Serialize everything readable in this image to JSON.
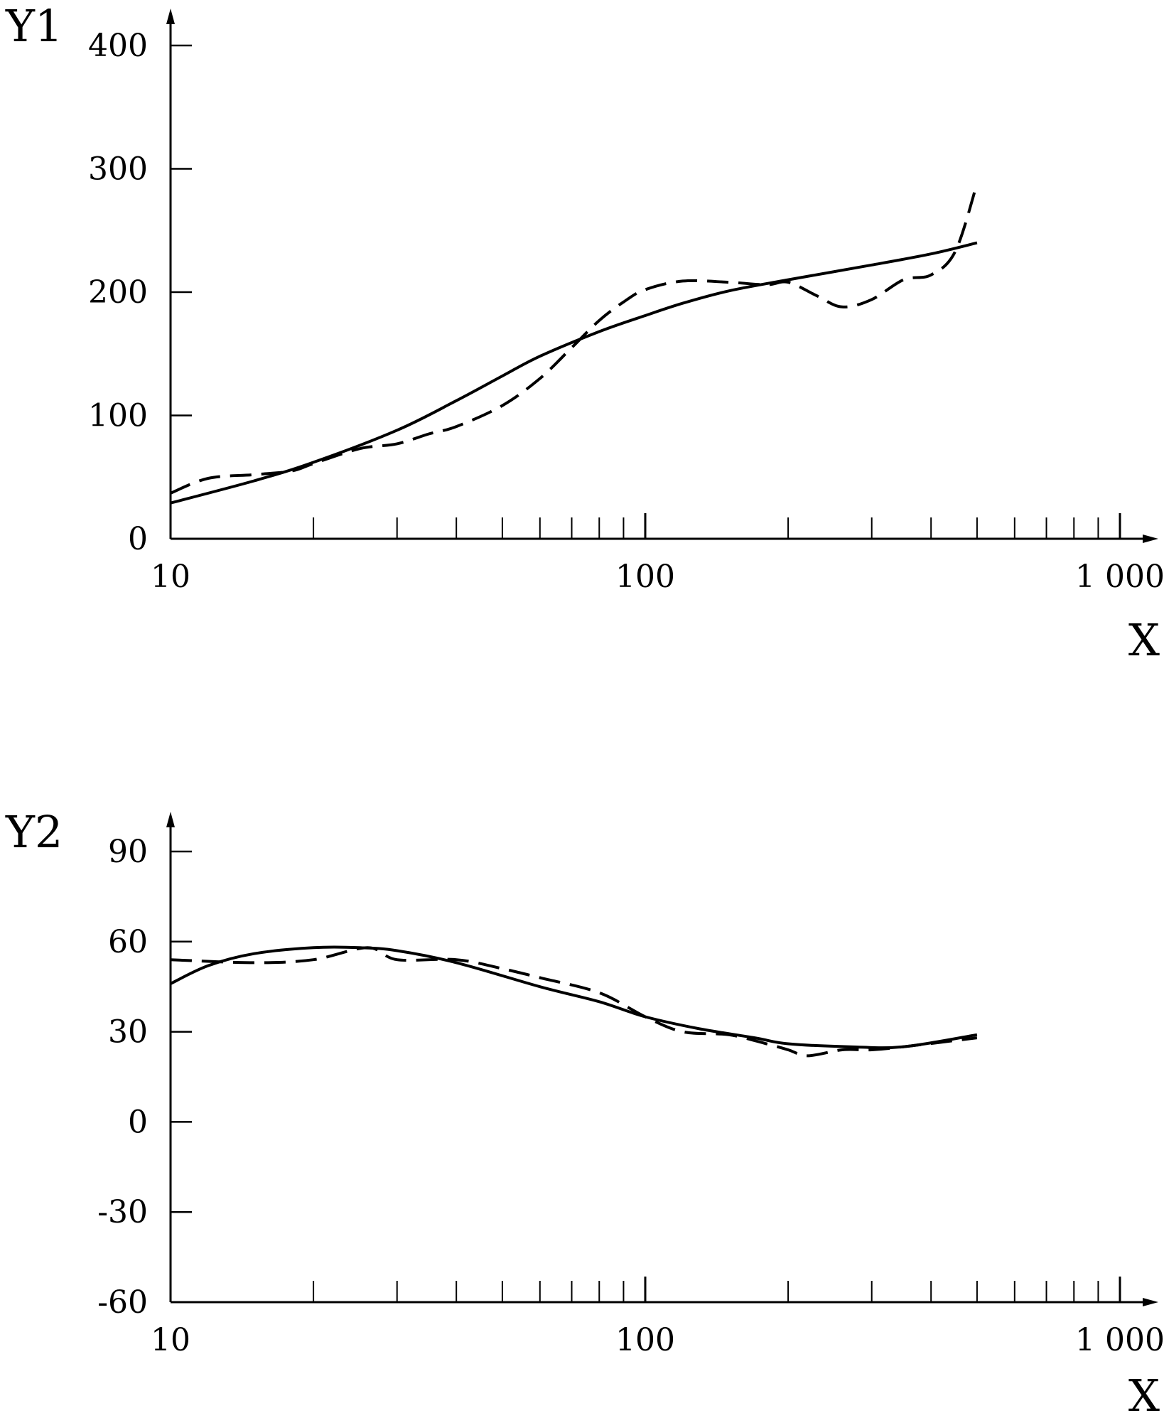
{
  "chart_data": [
    {
      "type": "line",
      "ylabel": "Y1",
      "xlabel": "X",
      "xscale": "log",
      "xlim": [
        10,
        1000
      ],
      "ylim": [
        0,
        400
      ],
      "xticks": [
        10,
        100,
        1000
      ],
      "xtick_labels": [
        "10",
        "100",
        "1 000"
      ],
      "yticks": [
        0,
        100,
        200,
        300,
        400
      ],
      "ytick_labels": [
        "0",
        "100",
        "200",
        "300",
        "400"
      ],
      "grid": false,
      "series": [
        {
          "style": "solid",
          "color": "#000000",
          "points": [
            [
              10,
              29
            ],
            [
              15,
              47
            ],
            [
              20,
              62
            ],
            [
              30,
              88
            ],
            [
              40,
              112
            ],
            [
              50,
              132
            ],
            [
              60,
              148
            ],
            [
              80,
              168
            ],
            [
              100,
              181
            ],
            [
              120,
              191
            ],
            [
              150,
              201
            ],
            [
              200,
              210
            ],
            [
              300,
              222
            ],
            [
              400,
              231
            ],
            [
              500,
              240
            ]
          ]
        },
        {
          "style": "dashed",
          "color": "#000000",
          "points": [
            [
              10,
              37
            ],
            [
              12,
              49
            ],
            [
              15,
              52
            ],
            [
              18,
              55
            ],
            [
              20,
              61
            ],
            [
              25,
              73
            ],
            [
              30,
              77
            ],
            [
              35,
              85
            ],
            [
              40,
              91
            ],
            [
              50,
              108
            ],
            [
              60,
              130
            ],
            [
              70,
              155
            ],
            [
              80,
              177
            ],
            [
              90,
              192
            ],
            [
              100,
              202
            ],
            [
              120,
              209
            ],
            [
              150,
              208
            ],
            [
              180,
              206
            ],
            [
              200,
              208
            ],
            [
              230,
              197
            ],
            [
              260,
              188
            ],
            [
              300,
              194
            ],
            [
              350,
              210
            ],
            [
              400,
              214
            ],
            [
              450,
              233
            ],
            [
              500,
              288
            ]
          ]
        }
      ]
    },
    {
      "type": "line",
      "ylabel": "Y2",
      "xlabel": "X",
      "xscale": "log",
      "xlim": [
        10,
        1000
      ],
      "ylim": [
        -60,
        90
      ],
      "xticks": [
        10,
        100,
        1000
      ],
      "xtick_labels": [
        "10",
        "100",
        "1 000"
      ],
      "yticks": [
        -60,
        -30,
        0,
        30,
        60,
        90
      ],
      "ytick_labels": [
        "-60",
        "-30",
        "0",
        "30",
        "60",
        "90"
      ],
      "grid": false,
      "series": [
        {
          "style": "solid",
          "color": "#000000",
          "points": [
            [
              10,
              46
            ],
            [
              12,
              52
            ],
            [
              15,
              56
            ],
            [
              20,
              58
            ],
            [
              25,
              58
            ],
            [
              30,
              57
            ],
            [
              40,
              53
            ],
            [
              60,
              45
            ],
            [
              80,
              40
            ],
            [
              100,
              35
            ],
            [
              130,
              31
            ],
            [
              170,
              28
            ],
            [
              200,
              26
            ],
            [
              270,
              25
            ],
            [
              350,
              25
            ],
            [
              500,
              29
            ]
          ]
        },
        {
          "style": "dashed",
          "color": "#000000",
          "points": [
            [
              10,
              54
            ],
            [
              15,
              53
            ],
            [
              20,
              54
            ],
            [
              26,
              58
            ],
            [
              30,
              54
            ],
            [
              40,
              54
            ],
            [
              50,
              51
            ],
            [
              60,
              48
            ],
            [
              80,
              43
            ],
            [
              100,
              35
            ],
            [
              120,
              30
            ],
            [
              150,
              29
            ],
            [
              180,
              26
            ],
            [
              200,
              24
            ],
            [
              220,
              22
            ],
            [
              260,
              24
            ],
            [
              300,
              24
            ],
            [
              350,
              25
            ],
            [
              500,
              28
            ]
          ]
        }
      ]
    }
  ]
}
